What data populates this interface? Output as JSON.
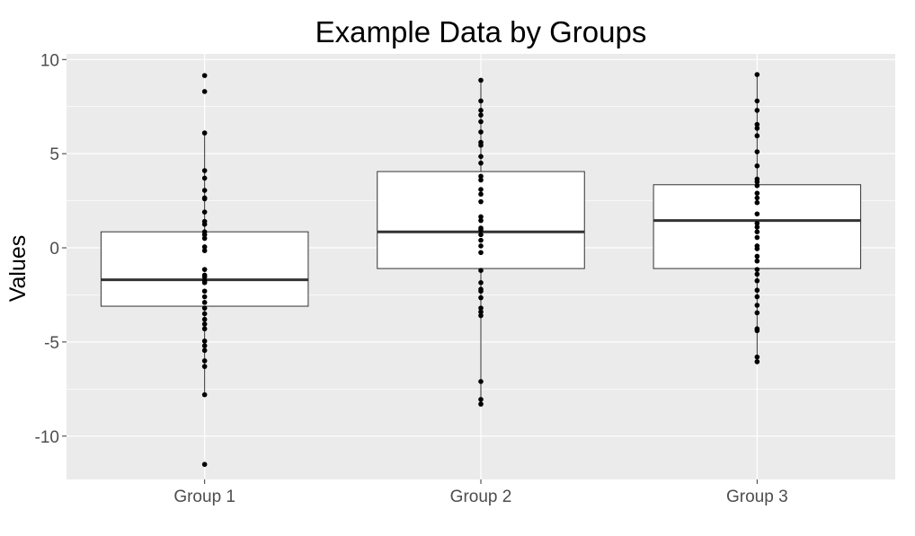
{
  "chart_data": {
    "type": "boxplot",
    "title": "Example Data by Groups",
    "xlabel": "",
    "ylabel": "Values",
    "ylim": [
      -12.3,
      10.3
    ],
    "yticks": [
      -10,
      -5,
      0,
      5,
      10
    ],
    "ytick_labels": [
      "-10",
      "-5",
      "0",
      "5",
      "10"
    ],
    "grid": true,
    "legend": "none",
    "colors": {
      "panel": "#ebebeb",
      "grid": "#ffffff",
      "box_fill": "#ffffff",
      "box_stroke": "#333333",
      "median": "#333333",
      "point": "#000000"
    },
    "groups": [
      {
        "label": "Group 1",
        "q1": -3.1,
        "median": -1.7,
        "q3": 0.85,
        "whisker_low": -7.8,
        "whisker_high": 6.1,
        "points": [
          9.15,
          8.3,
          6.1,
          4.1,
          3.7,
          3.05,
          2.65,
          2.6,
          1.9,
          1.4,
          1.25,
          0.85,
          0.7,
          0.5,
          0.05,
          -0.15,
          -1.15,
          -1.45,
          -1.55,
          -1.75,
          -1.85,
          -2.3,
          -2.6,
          -2.9,
          -3.2,
          -3.5,
          -3.8,
          -4.05,
          -4.3,
          -4.95,
          -5.2,
          -5.45,
          -6.0,
          -6.3,
          -7.8,
          -11.5
        ]
      },
      {
        "label": "Group 2",
        "q1": -1.1,
        "median": 0.85,
        "q3": 4.05,
        "whisker_low": -8.3,
        "whisker_high": 8.9,
        "points": [
          8.9,
          7.8,
          7.3,
          7.05,
          6.7,
          6.15,
          5.6,
          5.45,
          4.85,
          4.5,
          3.8,
          3.6,
          3.1,
          2.85,
          2.45,
          1.65,
          1.45,
          1.05,
          0.95,
          0.7,
          0.4,
          0.1,
          -0.25,
          -1.2,
          -1.85,
          -2.2,
          -2.3,
          -2.65,
          -3.2,
          -3.4,
          -3.6,
          -7.1,
          -8.05,
          -8.3
        ]
      },
      {
        "label": "Group 3",
        "q1": -1.1,
        "median": 1.45,
        "q3": 3.35,
        "whisker_low": -6.0,
        "whisker_high": 9.2,
        "points": [
          9.2,
          7.8,
          7.3,
          6.55,
          6.35,
          5.95,
          5.1,
          4.35,
          3.65,
          3.5,
          3.3,
          2.9,
          2.65,
          2.4,
          1.8,
          1.3,
          1.1,
          0.85,
          0.55,
          0.1,
          -0.05,
          -0.45,
          -0.7,
          -1.15,
          -1.4,
          -1.75,
          -2.25,
          -2.6,
          -3.05,
          -3.45,
          -4.3,
          -4.4,
          -5.8,
          -6.05
        ]
      }
    ]
  }
}
